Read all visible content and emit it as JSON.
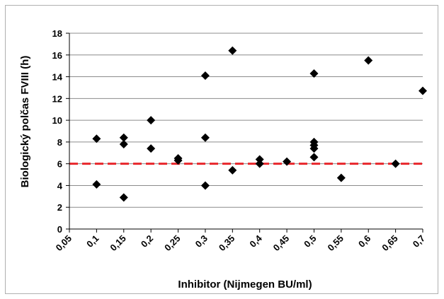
{
  "chart_data": {
    "type": "scatter",
    "title": "",
    "xlabel": "Inhibitor (Nijmegen BU/ml)",
    "ylabel": "Biologický polčas FVIII (h)",
    "xlim": [
      0.05,
      0.7
    ],
    "ylim": [
      0,
      18
    ],
    "x_ticks": [
      0.05,
      0.1,
      0.15,
      0.2,
      0.25,
      0.3,
      0.35,
      0.4,
      0.45,
      0.5,
      0.55,
      0.6,
      0.65,
      0.7
    ],
    "x_tick_labels": [
      "0,05",
      "0,1",
      "0,15",
      "0,2",
      "0,25",
      "0,3",
      "0,35",
      "0,4",
      "0,45",
      "0,5",
      "0,55",
      "0,6",
      "0,65",
      "0,7"
    ],
    "y_ticks": [
      0,
      2,
      4,
      6,
      8,
      10,
      12,
      14,
      16,
      18
    ],
    "y_tick_labels": [
      "0",
      "2",
      "4",
      "6",
      "8",
      "10",
      "12",
      "14",
      "16",
      "18"
    ],
    "grid": "horizontal",
    "legend": "none",
    "marker": "diamond",
    "marker_color": "#000000",
    "reference_line": {
      "y": 6,
      "style": "dashed",
      "color": "#e8262b"
    },
    "points": [
      {
        "x": 0.1,
        "y": 8.3
      },
      {
        "x": 0.1,
        "y": 4.1
      },
      {
        "x": 0.15,
        "y": 8.4
      },
      {
        "x": 0.15,
        "y": 7.8
      },
      {
        "x": 0.15,
        "y": 2.9
      },
      {
        "x": 0.2,
        "y": 10.0
      },
      {
        "x": 0.2,
        "y": 7.4
      },
      {
        "x": 0.25,
        "y": 6.5
      },
      {
        "x": 0.25,
        "y": 6.3
      },
      {
        "x": 0.3,
        "y": 14.1
      },
      {
        "x": 0.3,
        "y": 8.4
      },
      {
        "x": 0.3,
        "y": 4.0
      },
      {
        "x": 0.35,
        "y": 16.4
      },
      {
        "x": 0.35,
        "y": 5.4
      },
      {
        "x": 0.4,
        "y": 6.4
      },
      {
        "x": 0.4,
        "y": 6.0
      },
      {
        "x": 0.45,
        "y": 6.2
      },
      {
        "x": 0.5,
        "y": 14.3
      },
      {
        "x": 0.5,
        "y": 8.0
      },
      {
        "x": 0.5,
        "y": 7.7
      },
      {
        "x": 0.5,
        "y": 7.4
      },
      {
        "x": 0.5,
        "y": 6.6
      },
      {
        "x": 0.55,
        "y": 4.7
      },
      {
        "x": 0.6,
        "y": 15.5
      },
      {
        "x": 0.65,
        "y": 6.0
      },
      {
        "x": 0.7,
        "y": 12.7
      }
    ]
  }
}
